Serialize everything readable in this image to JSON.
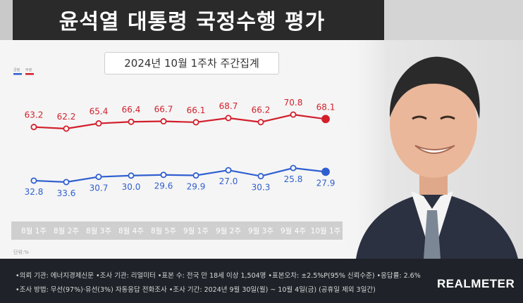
{
  "header": {
    "title": "윤석열 대통령 국정수행 평가",
    "subtitle": "2024년 10월 1주차 주간집계"
  },
  "chart_data": {
    "type": "line",
    "categories": [
      "8월 1주",
      "8월 2주",
      "8월 3주",
      "8월 4주",
      "8월 5주",
      "9월 1주",
      "9월 2주",
      "9월 3주",
      "9월 4주",
      "10월 1주"
    ],
    "series": [
      {
        "name": "부정",
        "color": "#d21f2b",
        "values": [
          63.2,
          62.2,
          65.4,
          66.4,
          66.7,
          66.1,
          68.7,
          66.2,
          70.8,
          68.1
        ],
        "labels": [
          "63.2",
          "62.2",
          "65.4",
          "66.4",
          "66.7",
          "66.1",
          "68.7",
          "66.2",
          "70.8",
          "68.1"
        ]
      },
      {
        "name": "긍정",
        "color": "#2f5fcf",
        "values": [
          32.8,
          33.6,
          30.7,
          30.0,
          29.6,
          29.9,
          27.0,
          30.3,
          25.8,
          27.9
        ],
        "labels": [
          "32.8",
          "33.6",
          "30.7",
          "30.0",
          "29.6",
          "29.9",
          "27.0",
          "30.3",
          "25.8",
          "27.9"
        ]
      }
    ],
    "legend": [
      {
        "label": "긍정",
        "color": "#2f5fcf"
      },
      {
        "label": "부정",
        "color": "#d21f2b"
      }
    ],
    "unit_note": "단위:%",
    "grid": false
  },
  "footer": {
    "line1": "•의뢰 기관: 에너지경제신문 •조사 기관: 리얼미터 •표본 수: 전국 만 18세 이상 1,504명 •표본오차: ±2.5%P(95% 신뢰수준) •응답률: 2.6%",
    "line2": "•조사 방법: 무선(97%)·유선(3%) 자동응답 전화조사 •조사 기간: 2024년 9월 30일(월) ~ 10월 4일(금) (공휴일 제외 3일간)",
    "brand": "REALMETER"
  }
}
